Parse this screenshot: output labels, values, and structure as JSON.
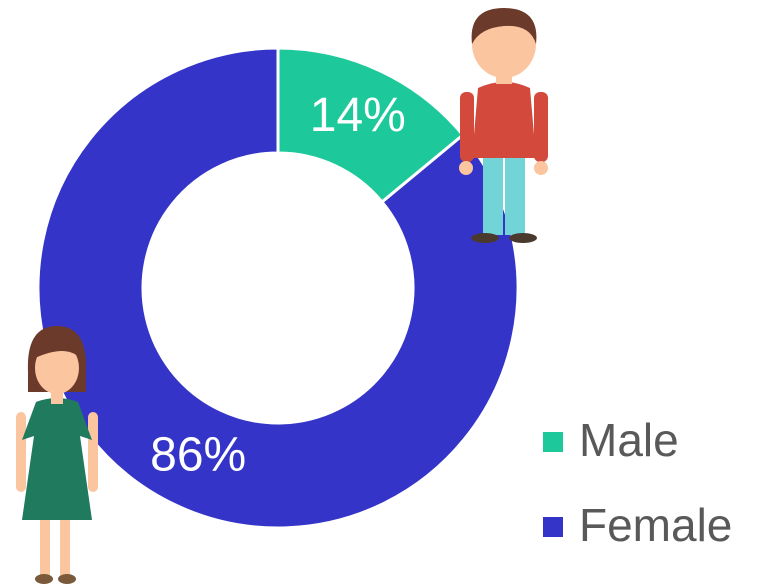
{
  "chart_data": {
    "type": "donut",
    "categories": [
      "Male",
      "Female"
    ],
    "values": [
      14,
      86
    ],
    "value_labels": [
      "14%",
      "86%"
    ],
    "colors": [
      "#1dc99a",
      "#3434c8"
    ],
    "legend": "bottom-right"
  }
}
